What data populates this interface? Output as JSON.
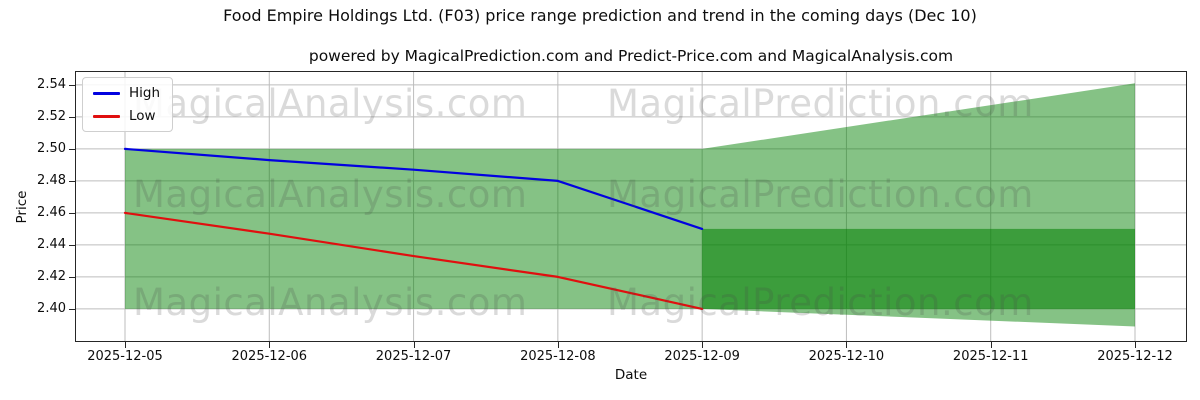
{
  "figure": {
    "title": "Food Empire Holdings Ltd. (F03) price range prediction and trend in the coming days (Dec 10)",
    "subtitle": "powered by MagicalPrediction.com and Predict-Price.com and MagicalAnalysis.com"
  },
  "watermarks": {
    "left_text": "MagicalAnalysis.com",
    "right_text": "MagicalPrediction.com"
  },
  "legend": {
    "items": [
      {
        "label": "High",
        "color": "#0202e0"
      },
      {
        "label": "Low",
        "color": "#e00f0f"
      }
    ]
  },
  "chart_data": {
    "type": "line",
    "title": "Food Empire Holdings Ltd. (F03) price range prediction and trend in the coming days (Dec 10)",
    "subtitle": "powered by MagicalPrediction.com and Predict-Price.com and MagicalAnalysis.com",
    "xlabel": "Date",
    "ylabel": "Price",
    "dates": [
      "2025-12-05",
      "2025-12-06",
      "2025-12-07",
      "2025-12-08",
      "2025-12-09",
      "2025-12-10",
      "2025-12-11",
      "2025-12-12"
    ],
    "yticks": [
      2.4,
      2.42,
      2.44,
      2.46,
      2.48,
      2.5,
      2.52,
      2.54
    ],
    "ylim": [
      2.3793,
      2.5487
    ],
    "grid": true,
    "legend_position": "upper-left",
    "series": [
      {
        "name": "High",
        "color": "#0202e0",
        "dates": [
          "2025-12-05",
          "2025-12-06",
          "2025-12-07",
          "2025-12-08",
          "2025-12-09"
        ],
        "values": [
          2.5,
          2.493,
          2.487,
          2.48,
          2.45
        ]
      },
      {
        "name": "Low",
        "color": "#e00f0f",
        "dates": [
          "2025-12-05",
          "2025-12-06",
          "2025-12-07",
          "2025-12-08",
          "2025-12-09"
        ],
        "values": [
          2.46,
          2.447,
          2.433,
          2.42,
          2.4
        ]
      }
    ],
    "bands": {
      "fill_color": "#008000",
      "light_opacity": 0.48,
      "dark_opacity": 0.55,
      "historical_range": {
        "start_date": "2025-12-05",
        "end_date": "2025-12-09",
        "low": 2.4,
        "high": 2.5
      },
      "forecast_outer_range": {
        "start_date": "2025-12-09",
        "end_date": "2025-12-12",
        "high_start": 2.5,
        "high_end": 2.541,
        "low_start": 2.4,
        "low_end": 2.389
      },
      "forecast_inner_range": {
        "start_date": "2025-12-09",
        "end_date": "2025-12-12",
        "low": 2.4,
        "high": 2.45
      }
    },
    "axis_colors": {
      "grid": "#bdbdbd",
      "spine": "#262626"
    }
  }
}
